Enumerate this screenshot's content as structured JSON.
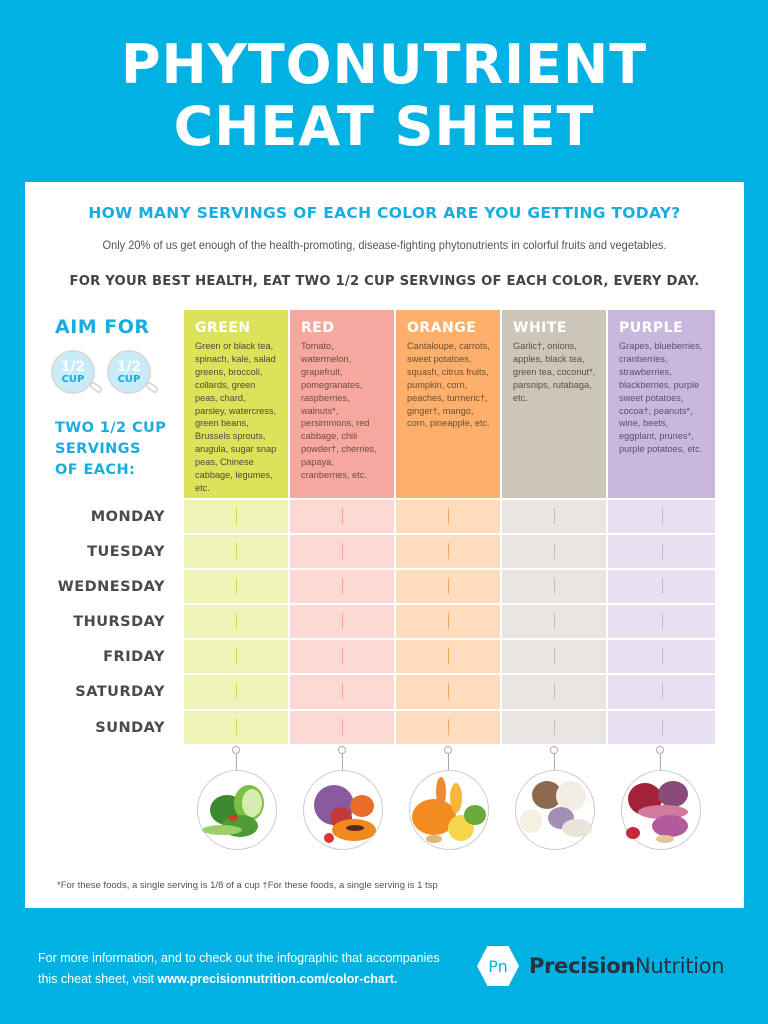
{
  "title": {
    "line1": "PHYTONUTRIENT",
    "line2": "CHEAT SHEET"
  },
  "card": {
    "headline": "HOW MANY SERVINGS OF EACH COLOR ARE YOU GETTING TODAY?",
    "subline": "Only 20% of us get enough of the health-promoting, disease-fighting phytonutrients in colorful fruits and vegetables.",
    "bestline": "FOR YOUR BEST HEALTH, EAT TWO 1/2 CUP SERVINGS OF EACH COLOR, EVERY DAY.",
    "aim_for": "AIM FOR",
    "cup_fraction": "1/2",
    "cup_unit": "CUP",
    "two_servings": [
      "TWO 1/2 CUP",
      "SERVINGS",
      "OF EACH:"
    ]
  },
  "colors": [
    {
      "name": "GREEN",
      "header_bg": "#dce35a",
      "text_color": "#4a4a3a",
      "cell_bg": "#eff4b9",
      "tick_color": "#cfd84a",
      "foods": "Green or black tea, spinach, kale, salad greens, broccoli, collards, green peas, chard, parsley, watercress, green beans, Brussels sprouts, arugula, sugar snap peas, Chinese cabbage, legumes, etc."
    },
    {
      "name": "RED",
      "header_bg": "#f7a89e",
      "text_color": "#6b4a46",
      "cell_bg": "#fdd9d4",
      "tick_color": "#f2a097",
      "foods": "Tomato, watermelon, grapefruit, pomegranates, raspberries, walnuts*, persimmons, red cabbage, chili powder†, cherries, papaya, cranberries, etc."
    },
    {
      "name": "ORANGE",
      "header_bg": "#fdaf6b",
      "text_color": "#6b4f33",
      "cell_bg": "#fedcbd",
      "tick_color": "#f9a660",
      "foods": "Cantaloupe, carrots, sweet potatoes, squash, citrus fruits, pumpkin, corn, peaches, turmeric†, ginger†, mango, corn, pineapple, etc."
    },
    {
      "name": "WHITE",
      "header_bg": "#cbc6b8",
      "text_color": "#55524a",
      "cell_bg": "#e9e6e1",
      "tick_color": "#c2beb4",
      "foods": "Garlic†, onions, apples, black tea, green tea, coconut*, parsnips, rutabaga, etc."
    },
    {
      "name": "PURPLE",
      "header_bg": "#c8b8dd",
      "text_color": "#5a5068",
      "cell_bg": "#e6e0f1",
      "tick_color": "#c2b5d6",
      "foods": "Grapes, blueberries, cranberries, strawberries, blackberries, purple sweet potatoes, cocoa†, peanuts*, wine, beets, eggplant, prunes*, purple potatoes, etc."
    }
  ],
  "days": [
    "MONDAY",
    "TUESDAY",
    "WEDNESDAY",
    "THURSDAY",
    "FRIDAY",
    "SATURDAY",
    "SUNDAY"
  ],
  "illustrations": [
    "green-vegetables-illustration",
    "red-fruits-illustration",
    "orange-produce-illustration",
    "white-produce-illustration",
    "purple-produce-illustration"
  ],
  "footnote": "*For these foods, a single serving is 1/8 of a cup  †For these foods, a single serving is 1 tsp",
  "footer": {
    "line1": "For more information, and to check out the infographic that accompanies",
    "line2_prefix": "this cheat sheet, visit ",
    "link": "www.precisionnutrition.com/color-chart.",
    "logo_mark": "Pn",
    "brand_bold": "Precision",
    "brand_regular": "Nutrition"
  },
  "theme": {
    "background": "#00b2e3",
    "accent": "#18ade1"
  }
}
